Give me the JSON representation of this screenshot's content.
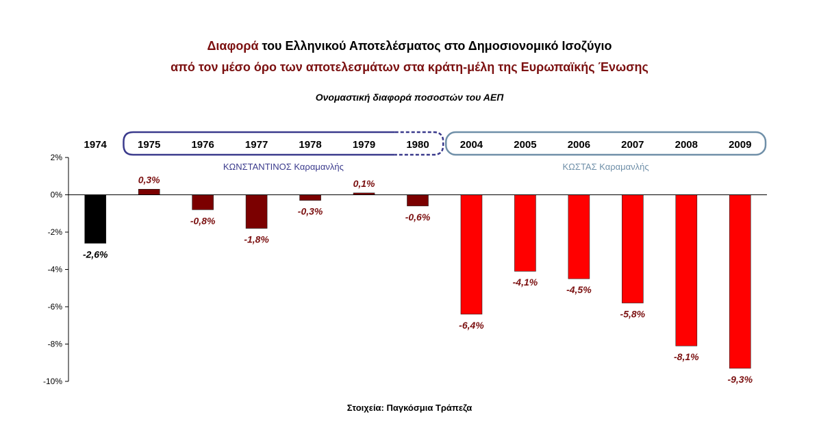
{
  "title_line1_accent": "Διαφορά",
  "title_line1_rest": " του Ελληνικού Αποτελέσματος στο Δημοσιονομικό Ισοζύγιο",
  "title_line2": "από τον μέσο όρο των αποτελεσμάτων στα κράτη-μέλη της Ευρωπαϊκής Ένωσης",
  "subtitle": "Ονομαστική διαφορά ποσοστών του ΑΕΠ",
  "source": "Στοιχεία: Παγκόσμια Τράπεζα",
  "chart_data": {
    "type": "bar",
    "categories": [
      "1974",
      "1975",
      "1976",
      "1977",
      "1978",
      "1979",
      "1980",
      "2004",
      "2005",
      "2006",
      "2007",
      "2008",
      "2009"
    ],
    "values": [
      -2.6,
      0.3,
      -0.8,
      -1.8,
      -0.3,
      0.1,
      -0.6,
      -6.4,
      -4.1,
      -4.5,
      -5.8,
      -8.1,
      -9.3
    ],
    "value_labels": [
      "-2,6%",
      "0,3%",
      "-0,8%",
      "-1,8%",
      "-0,3%",
      "0,1%",
      "-0,6%",
      "-6,4%",
      "-4,1%",
      "-4,5%",
      "-5,8%",
      "-8,1%",
      "-9,3%"
    ],
    "ylim": [
      -10,
      2
    ],
    "yticks": [
      2,
      0,
      -2,
      -4,
      -6,
      -8,
      -10
    ],
    "ytick_labels": [
      "2%",
      "0%",
      "-2%",
      "-4%",
      "-6%",
      "-8%",
      "-10%"
    ],
    "xlabel": "",
    "ylabel": "",
    "grid": false,
    "bar_colors": [
      "#000000",
      "#7b0000",
      "#7b0000",
      "#7b0000",
      "#7b0000",
      "#7b0000",
      "#7b0000",
      "#ff0000",
      "#ff0000",
      "#ff0000",
      "#ff0000",
      "#ff0000",
      "#ff0000"
    ],
    "label_colors": [
      "#000000",
      "#7b1010",
      "#7b1010",
      "#7b1010",
      "#7b1010",
      "#7b1010",
      "#7b1010",
      "#7b1010",
      "#7b1010",
      "#7b1010",
      "#7b1010",
      "#7b1010",
      "#7b1010"
    ],
    "groups": [
      {
        "label": "ΚΩΝΣΤΑΝΤΙΝΟΣ Καραμανλής",
        "color": "#3a3a8c",
        "from": 1,
        "to": 6,
        "dashed_end": true
      },
      {
        "label": "ΚΩΣΤΑΣ Καραμανλής",
        "color": "#6f8fa8",
        "from": 7,
        "to": 12,
        "dashed_end": false
      }
    ]
  }
}
